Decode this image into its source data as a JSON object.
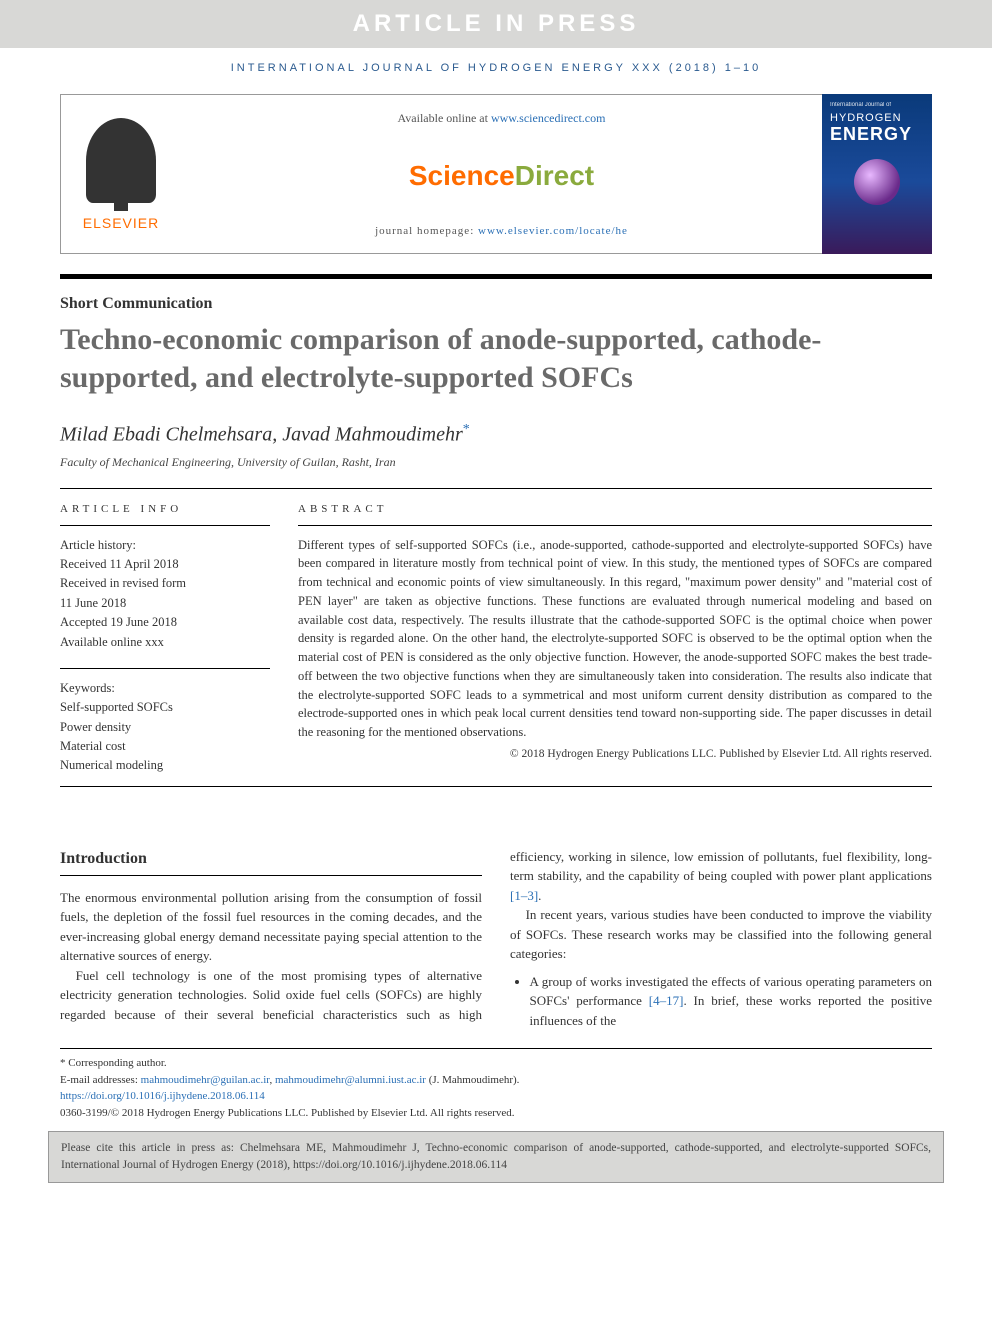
{
  "banner": "ARTICLE IN PRESS",
  "journalLine": "INTERNATIONAL JOURNAL OF HYDROGEN ENERGY XXX (2018) 1–10",
  "header": {
    "elsevier": "ELSEVIER",
    "availablePrefix": "Available online at ",
    "availableLink": "www.sciencedirect.com",
    "sdScience": "Science",
    "sdDirect": "Direct",
    "homepagePrefix": "journal homepage: ",
    "homepageLink": "www.elsevier.com/locate/he",
    "cover": {
      "small": "International Journal of",
      "hydrogen": "HYDROGEN",
      "energy": "ENERGY"
    }
  },
  "articleType": "Short Communication",
  "title": "Techno-economic comparison of anode-supported, cathode-supported, and electrolyte-supported SOFCs",
  "authors": "Milad Ebadi Chelmehsara, Javad Mahmoudimehr",
  "starGlyph": "*",
  "affiliation": "Faculty of Mechanical Engineering, University of Guilan, Rasht, Iran",
  "info": {
    "heading": "ARTICLE INFO",
    "historyLabel": "Article history:",
    "history": [
      "Received 11 April 2018",
      "Received in revised form",
      "11 June 2018",
      "Accepted 19 June 2018",
      "Available online xxx"
    ],
    "keywordsLabel": "Keywords:",
    "keywords": [
      "Self-supported SOFCs",
      "Power density",
      "Material cost",
      "Numerical modeling"
    ]
  },
  "abstract": {
    "heading": "ABSTRACT",
    "text": "Different types of self-supported SOFCs (i.e., anode-supported, cathode-supported and electrolyte-supported SOFCs) have been compared in literature mostly from technical point of view. In this study, the mentioned types of SOFCs are compared from technical and economic points of view simultaneously. In this regard, \"maximum power density\" and \"material cost of PEN layer\" are taken as objective functions. These functions are evaluated through numerical modeling and based on available cost data, respectively. The results illustrate that the cathode-supported SOFC is the optimal choice when power density is regarded alone. On the other hand, the electrolyte-supported SOFC is observed to be the optimal option when the material cost of PEN is considered as the only objective function. However, the anode-supported SOFC makes the best trade-off between the two objective functions when they are simultaneously taken into consideration. The results also indicate that the electrolyte-supported SOFC leads to a symmetrical and most uniform current density distribution as compared to the electrode-supported ones in which peak local current densities tend toward non-supporting side. The paper discusses in detail the reasoning for the mentioned observations.",
    "copyright": "© 2018 Hydrogen Energy Publications LLC. Published by Elsevier Ltd. All rights reserved."
  },
  "intro": {
    "heading": "Introduction",
    "p1": "The enormous environmental pollution arising from the consumption of fossil fuels, the depletion of the fossil fuel resources in the coming decades, and the ever-increasing global energy demand necessitate paying special attention to the alternative sources of energy.",
    "p2a": "Fuel cell technology is one of the most promising types of alternative electricity generation technologies. Solid oxide fuel cells (SOFCs) are highly regarded because of their several",
    "p2b": "beneficial characteristics such as high efficiency, working in silence, low emission of pollutants, fuel flexibility, long-term stability, and the capability of being coupled with power plant applications ",
    "ref1": "[1–3]",
    "dot1": ".",
    "p3": "In recent years, various studies have been conducted to improve the viability of SOFCs. These research works may be classified into the following general categories:",
    "bullet1a": "A group of works investigated the effects of various operating parameters on SOFCs' performance ",
    "ref2": "[4–17]",
    "bullet1b": ". In brief, these works reported the positive influences of the"
  },
  "footnotes": {
    "corr": "* Corresponding author.",
    "emailLabel": "E-mail addresses: ",
    "email1": "mahmoudimehr@guilan.ac.ir",
    "comma": ", ",
    "email2": "mahmoudimehr@alumni.iust.ac.ir",
    "emailSuffix": " (J. Mahmoudimehr).",
    "doi": "https://doi.org/10.1016/j.ijhydene.2018.06.114",
    "issn": "0360-3199/© 2018 Hydrogen Energy Publications LLC. Published by Elsevier Ltd. All rights reserved."
  },
  "citeBox": "Please cite this article in press as: Chelmehsara ME, Mahmoudimehr J, Techno-economic comparison of anode-supported, cathode-supported, and electrolyte-supported SOFCs, International Journal of Hydrogen Energy (2018), https://doi.org/10.1016/j.ijhydene.2018.06.114"
}
